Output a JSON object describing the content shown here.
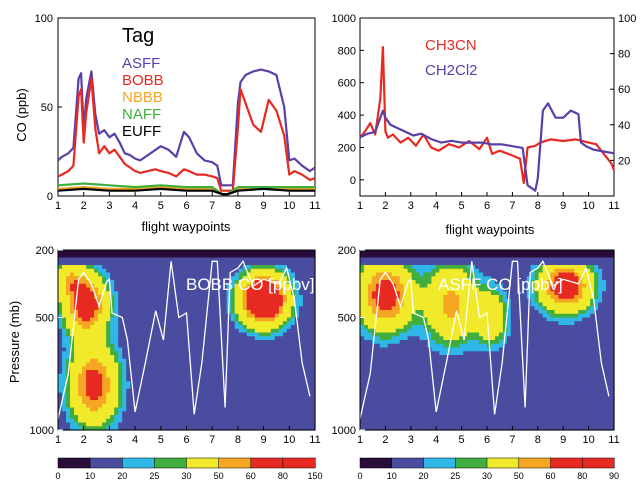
{
  "chart_data": [
    {
      "type": "line",
      "panel": "top-left",
      "ylabel": "CO (ppb)",
      "xlabel": "flight waypoints",
      "xlim": [
        1,
        11
      ],
      "ylim": [
        0,
        100
      ],
      "xticks": [
        "1",
        "2",
        "3",
        "4",
        "5",
        "6",
        "7",
        "8",
        "9",
        "10",
        "11"
      ],
      "yticks": [
        "0",
        "50",
        "100"
      ],
      "legend_title": "Tag",
      "series": [
        {
          "name": "ASFF",
          "color": "#5a3fa8",
          "x": [
            1,
            1.15,
            1.4,
            1.6,
            1.8,
            1.9,
            2.0,
            2.1,
            2.3,
            2.45,
            2.6,
            2.8,
            3.0,
            3.2,
            3.4,
            3.6,
            3.8,
            4.0,
            4.2,
            4.5,
            4.8,
            5.0,
            5.3,
            5.6,
            5.9,
            6.1,
            6.4,
            6.7,
            7.0,
            7.2,
            7.35,
            7.5,
            7.8,
            8.0,
            8.1,
            8.3,
            8.6,
            8.9,
            9.2,
            9.5,
            9.8,
            10.0,
            10.2,
            10.5,
            10.8,
            11
          ],
          "y": [
            20,
            22,
            24,
            27,
            66,
            69,
            38,
            55,
            70,
            46,
            35,
            37,
            33,
            35,
            30,
            24,
            23,
            21,
            20,
            23,
            26,
            28,
            26,
            22,
            36,
            33,
            24,
            20,
            19,
            17,
            6,
            6,
            6,
            52,
            64,
            68,
            70,
            71,
            70,
            68,
            50,
            20,
            21,
            17,
            14,
            16
          ]
        },
        {
          "name": "BOBB",
          "color": "#e62a22",
          "x": [
            1,
            1.15,
            1.4,
            1.6,
            1.8,
            1.9,
            2.0,
            2.1,
            2.3,
            2.45,
            2.6,
            2.8,
            3.0,
            3.2,
            3.4,
            3.6,
            3.8,
            4.0,
            4.2,
            4.5,
            4.8,
            5.0,
            5.3,
            5.6,
            5.9,
            6.1,
            6.4,
            6.7,
            7.0,
            7.2,
            7.35,
            7.5,
            7.8,
            8.0,
            8.1,
            8.3,
            8.6,
            8.9,
            9.2,
            9.5,
            9.8,
            10.0,
            10.2,
            10.5,
            10.8,
            11
          ],
          "y": [
            11,
            12,
            14,
            17,
            56,
            60,
            30,
            47,
            66,
            38,
            24,
            28,
            24,
            26,
            22,
            18,
            16,
            14,
            13,
            14,
            15,
            14,
            13,
            11,
            15,
            14,
            12,
            12,
            11,
            10,
            3,
            3,
            3,
            38,
            60,
            52,
            40,
            36,
            54,
            48,
            34,
            12,
            14,
            12,
            9,
            10
          ]
        },
        {
          "name": "NBBB",
          "color": "#f5a623",
          "x": [
            1,
            2,
            3,
            4,
            5,
            6,
            7,
            7.4,
            7.6,
            8,
            9,
            10,
            11
          ],
          "y": [
            4,
            5,
            4,
            4,
            5,
            4,
            4,
            1,
            1,
            4,
            5,
            4,
            4
          ]
        },
        {
          "name": "NAFF",
          "color": "#3fae3f",
          "x": [
            1,
            2,
            3,
            4,
            5,
            6,
            7,
            7.4,
            7.6,
            8,
            9,
            10,
            11
          ],
          "y": [
            6,
            7,
            6,
            5,
            6,
            5,
            5,
            1,
            1,
            5,
            5,
            5,
            5
          ]
        },
        {
          "name": "EUFF",
          "color": "#000000",
          "x": [
            1,
            2,
            3,
            4,
            5,
            6,
            7,
            7.4,
            7.6,
            8,
            9,
            10,
            11
          ],
          "y": [
            3,
            4,
            3,
            3,
            4,
            3,
            3,
            1,
            1,
            3,
            4,
            3,
            3
          ]
        }
      ]
    },
    {
      "type": "line",
      "panel": "top-right",
      "xlabel": "flight waypoints",
      "xlim": [
        1,
        11
      ],
      "ylim_left": [
        -100,
        1000
      ],
      "ylim_right": [
        0,
        100
      ],
      "xticks": [
        "1",
        "2",
        "3",
        "4",
        "5",
        "6",
        "7",
        "8",
        "9",
        "10",
        "11"
      ],
      "yticks_left": [
        "0",
        "200",
        "400",
        "600",
        "800",
        "1000"
      ],
      "yticks_right": [
        "20",
        "40",
        "60",
        "80",
        "100"
      ],
      "series": [
        {
          "name": "CH3CN",
          "color": "#e62a22",
          "axis": "left",
          "x": [
            1,
            1.2,
            1.4,
            1.6,
            1.8,
            1.9,
            2.0,
            2.1,
            2.3,
            2.6,
            2.9,
            3.2,
            3.5,
            3.8,
            4.1,
            4.5,
            4.9,
            5.3,
            5.7,
            6.0,
            6.2,
            6.5,
            7.0,
            7.3,
            7.45,
            7.6,
            7.9,
            8.1,
            8.5,
            9.0,
            9.5,
            10.0,
            10.3,
            10.6,
            10.9,
            11
          ],
          "y": [
            260,
            300,
            350,
            280,
            500,
            820,
            300,
            260,
            280,
            230,
            260,
            210,
            280,
            200,
            180,
            220,
            200,
            240,
            190,
            260,
            160,
            180,
            150,
            130,
            -20,
            200,
            210,
            230,
            250,
            240,
            250,
            230,
            220,
            160,
            100,
            60
          ]
        },
        {
          "name": "CH2Cl2",
          "color": "#5a3fa8",
          "axis": "right",
          "x": [
            1,
            1.3,
            1.6,
            1.8,
            1.9,
            2.0,
            2.2,
            2.5,
            2.8,
            3.1,
            3.4,
            3.8,
            4.2,
            4.6,
            5.0,
            5.4,
            5.8,
            6.2,
            6.6,
            7.0,
            7.4,
            7.6,
            7.9,
            8.0,
            8.2,
            8.4,
            8.7,
            9.0,
            9.3,
            9.6,
            9.7,
            9.9,
            10.2,
            10.6,
            11
          ],
          "y": [
            33,
            35,
            36,
            44,
            48,
            44,
            40,
            38,
            36,
            34,
            35,
            32,
            30,
            31,
            30,
            30,
            30,
            29,
            29,
            28,
            27,
            6,
            3,
            10,
            48,
            52,
            44,
            44,
            48,
            46,
            30,
            28,
            26,
            25,
            24
          ]
        }
      ]
    },
    {
      "type": "heatmap",
      "panel": "bottom-left",
      "title": "BOBB CO [ppbv]",
      "ylabel": "Pressure (mb)",
      "xlim": [
        1,
        11
      ],
      "ylim": [
        1000,
        200
      ],
      "xticks": [
        "1",
        "2",
        "3",
        "4",
        "5",
        "6",
        "7",
        "8",
        "9",
        "10",
        "11"
      ],
      "yticks": [
        "200",
        "500",
        "1000"
      ],
      "colorbar_labels": [
        "0",
        "10",
        "20",
        "25",
        "30",
        "50",
        "60",
        "80",
        "150"
      ],
      "blobs": [
        {
          "x": 2.1,
          "p": 440,
          "sx": 0.8,
          "sp": 130,
          "v": 60
        },
        {
          "x": 2.4,
          "p": 800,
          "sx": 0.9,
          "sp": 170,
          "v": 55
        },
        {
          "x": 9.0,
          "p": 420,
          "sx": 0.9,
          "sp": 110,
          "v": 85
        },
        {
          "x": 1.4,
          "p": 330,
          "sx": 0.6,
          "sp": 80,
          "v": 26
        }
      ],
      "flight_track": {
        "x": [
          1,
          1.4,
          1.8,
          2.0,
          2.3,
          2.6,
          2.9,
          3.0,
          3.1,
          3.5,
          3.7,
          4.0,
          4.4,
          4.8,
          5.1,
          5.4,
          5.7,
          6.0,
          6.3,
          6.6,
          7.0,
          7.2,
          7.5,
          7.7,
          8.0,
          8.2,
          8.6,
          9.0,
          9.6,
          9.9,
          10.2,
          10.5,
          10.8
        ],
        "p": [
          950,
          750,
          330,
          300,
          350,
          450,
          340,
          330,
          480,
          500,
          600,
          920,
          700,
          470,
          600,
          250,
          500,
          480,
          930,
          700,
          250,
          250,
          900,
          300,
          280,
          250,
          360,
          330,
          350,
          280,
          420,
          700,
          850
        ]
      }
    },
    {
      "type": "heatmap",
      "panel": "bottom-right",
      "title": "ASFF CO [ppbv]",
      "xlim": [
        1,
        11
      ],
      "ylim": [
        1000,
        200
      ],
      "xticks": [
        "1",
        "2",
        "3",
        "4",
        "5",
        "6",
        "7",
        "8",
        "9",
        "10",
        "11"
      ],
      "yticks": [
        "200",
        "500",
        "1000"
      ],
      "colorbar_labels": [
        "0",
        "10",
        "20",
        "25",
        "30",
        "50",
        "60",
        "80",
        "90"
      ],
      "blobs": [
        {
          "x": 2.0,
          "p": 400,
          "sx": 1.0,
          "sp": 150,
          "v": 58
        },
        {
          "x": 4.6,
          "p": 440,
          "sx": 1.0,
          "sp": 170,
          "v": 40
        },
        {
          "x": 9.1,
          "p": 360,
          "sx": 1.0,
          "sp": 110,
          "v": 62
        },
        {
          "x": 6.2,
          "p": 500,
          "sx": 0.6,
          "sp": 120,
          "v": 30
        }
      ],
      "flight_track": {
        "x": [
          1,
          1.4,
          1.8,
          2.0,
          2.3,
          2.6,
          2.9,
          3.0,
          3.1,
          3.5,
          3.7,
          4.0,
          4.4,
          4.8,
          5.1,
          5.4,
          5.7,
          6.0,
          6.3,
          6.6,
          7.0,
          7.2,
          7.5,
          7.7,
          8.0,
          8.2,
          8.6,
          9.0,
          9.6,
          9.9,
          10.2,
          10.5,
          10.8
        ],
        "p": [
          950,
          750,
          330,
          300,
          350,
          450,
          340,
          330,
          480,
          500,
          600,
          920,
          700,
          470,
          600,
          250,
          500,
          480,
          930,
          700,
          250,
          250,
          900,
          300,
          280,
          250,
          360,
          330,
          350,
          280,
          420,
          700,
          850
        ]
      }
    }
  ],
  "colors": {
    "levels": [
      "#2a0c3a",
      "#4a4ca0",
      "#2fb7e8",
      "#3fae3f",
      "#f0ea2a",
      "#f5a623",
      "#e62a22"
    ]
  }
}
